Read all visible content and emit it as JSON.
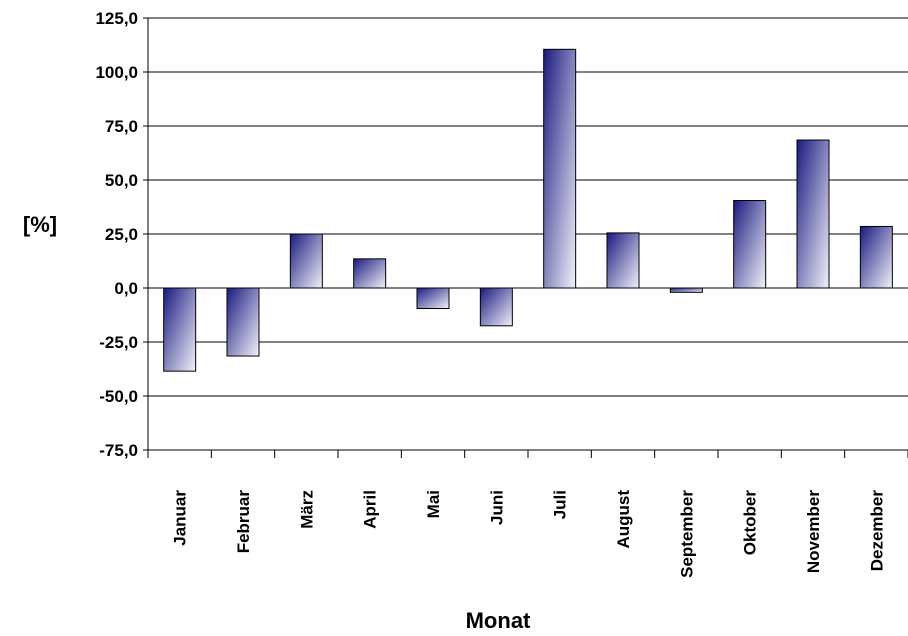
{
  "chart_data": {
    "type": "bar",
    "title": "",
    "xlabel": "Monat",
    "ylabel": "[%]",
    "categories": [
      "Januar",
      "Februar",
      "März",
      "April",
      "Mai",
      "Juni",
      "Juli",
      "August",
      "September",
      "Oktober",
      "November",
      "Dezember"
    ],
    "values": [
      -38.5,
      -31.5,
      25.0,
      13.5,
      -9.5,
      -17.5,
      110.5,
      25.5,
      -2.0,
      40.5,
      68.5,
      28.5
    ],
    "ylim": [
      -75,
      125
    ],
    "yticks": [
      125,
      100,
      75,
      50,
      25,
      0,
      -25,
      -50,
      -75
    ],
    "ytick_labels": [
      "125,0",
      "100,0",
      "75,0",
      "50,0",
      "25,0",
      "0,0",
      "-25,0",
      "-50,0",
      "-75,0"
    ],
    "grid": true,
    "legend": "none",
    "colors": {
      "bar_dark": "#1a1a80",
      "bar_light": "#f2f2fa",
      "grid": "#000000"
    }
  }
}
